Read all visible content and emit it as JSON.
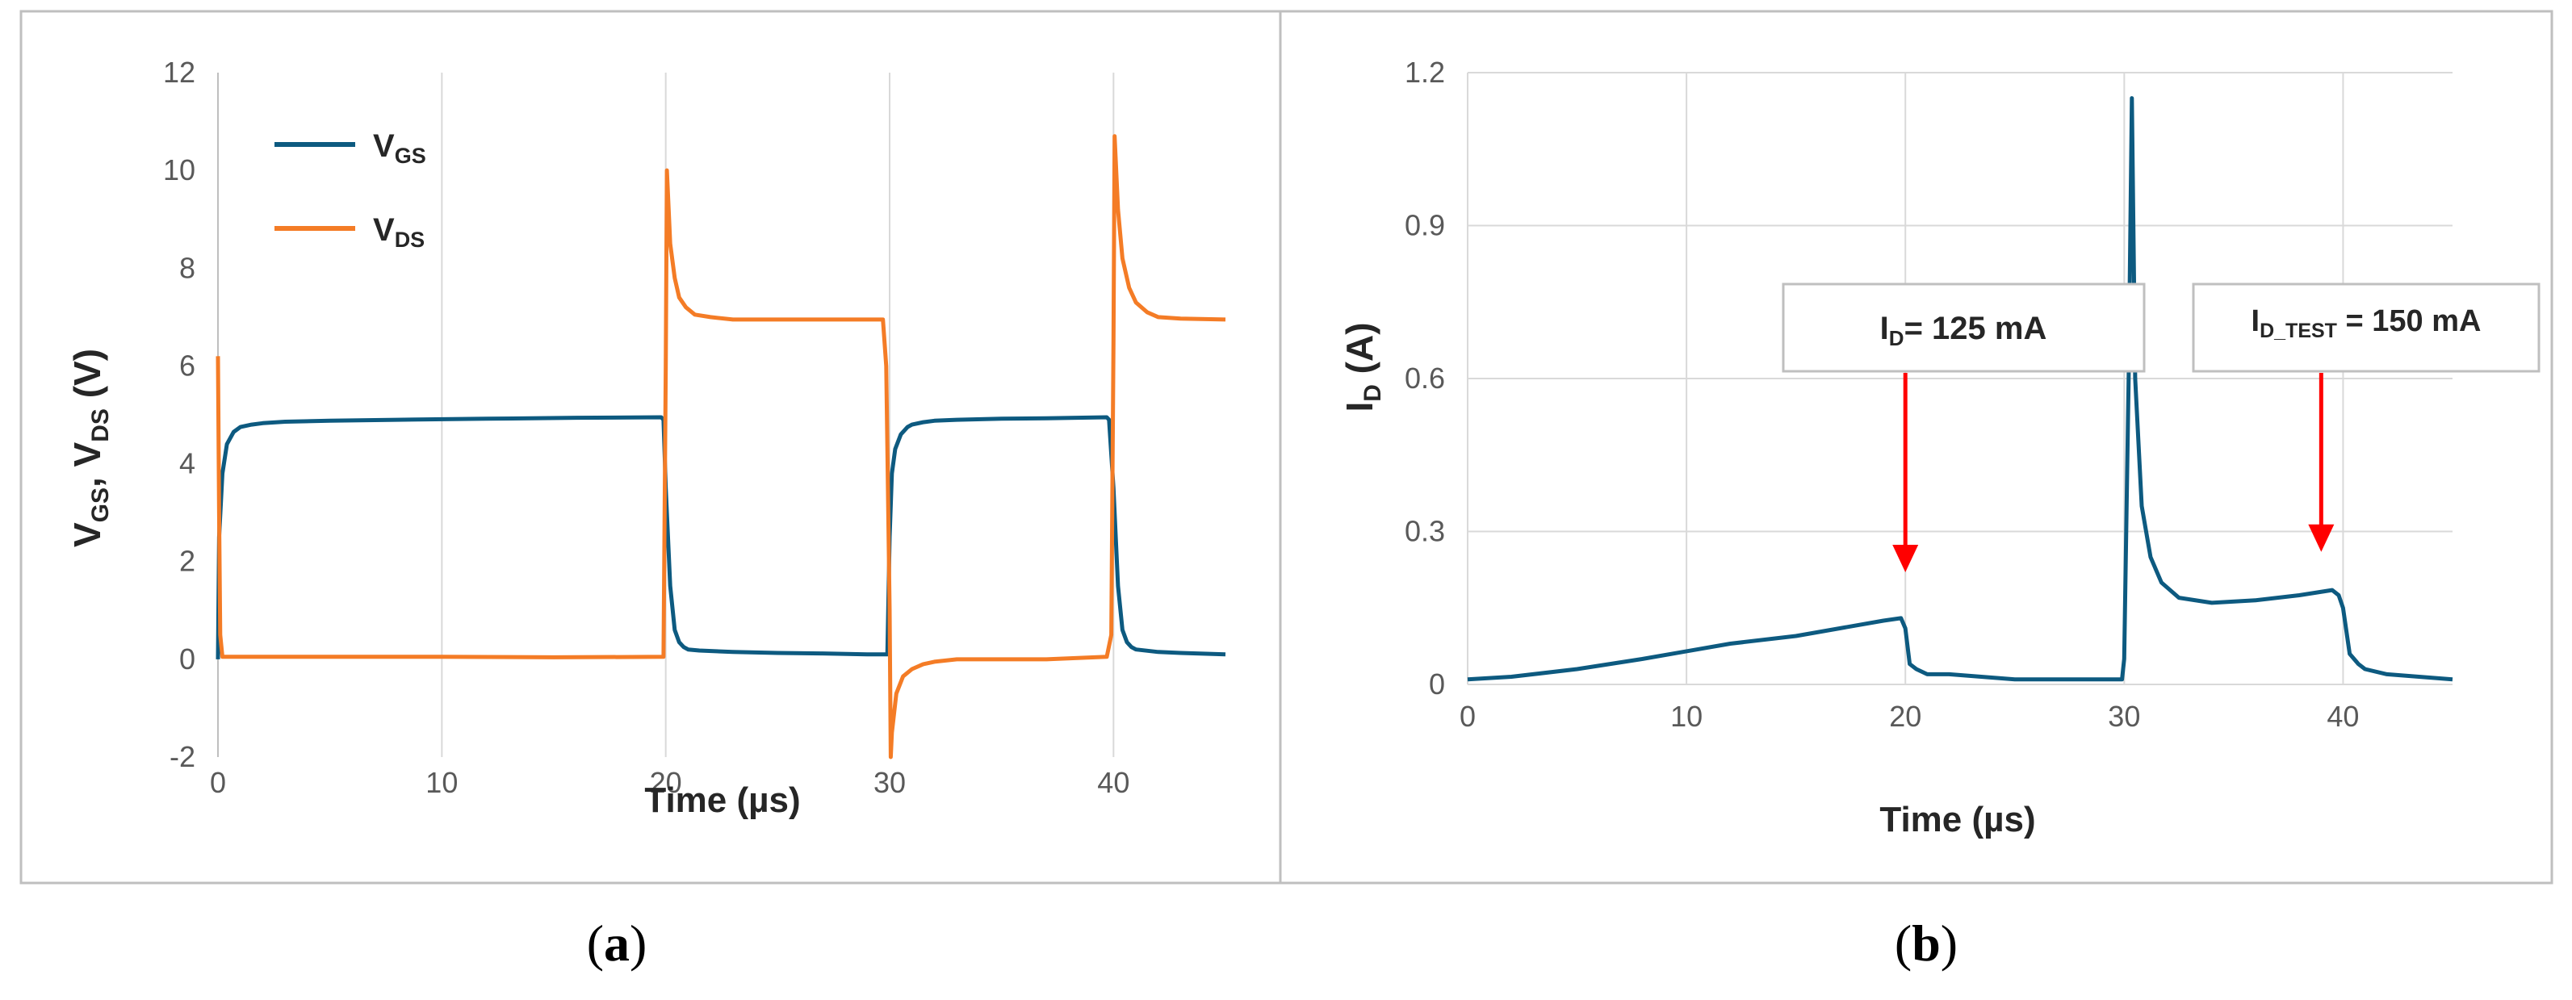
{
  "colors": {
    "vgs": "#0d5a80",
    "vds": "#f47c26",
    "id": "#0d5a80",
    "arrow": "#ff0000",
    "grid": "#d9d9d9",
    "frame": "#bfbfbf"
  },
  "chart_data": [
    {
      "panel": "(a)",
      "panel_letter": "a",
      "type": "line",
      "xlabel": "Time (µs)",
      "ylabel_parts": {
        "v1": "V",
        "s1": "GS",
        "mid": ", V",
        "s2": "DS",
        "unit": "  (V)"
      },
      "xlim": [
        0,
        45
      ],
      "ylim": [
        -2,
        12
      ],
      "xticks": [
        0,
        10,
        20,
        30,
        40
      ],
      "yticks": [
        -2,
        0,
        2,
        4,
        6,
        8,
        10,
        12
      ],
      "grid": "vertical",
      "legend_position": "top-left",
      "series": [
        {
          "name": "VGS",
          "name_main": "V",
          "name_sub": "GS",
          "color_key": "vgs",
          "x": [
            0,
            0.05,
            0.2,
            0.4,
            0.7,
            1,
            1.5,
            2,
            3,
            5,
            8,
            12,
            16,
            19.8,
            19.9,
            20.0,
            20.2,
            20.4,
            20.6,
            20.8,
            21,
            21.5,
            23,
            25,
            27,
            29,
            29.9,
            30.0,
            30.1,
            30.25,
            30.5,
            30.8,
            31,
            31.5,
            32,
            33,
            35,
            37,
            39.7,
            39.8,
            40.0,
            40.2,
            40.4,
            40.6,
            40.8,
            41,
            42,
            43,
            45
          ],
          "y": [
            0,
            2.5,
            3.8,
            4.4,
            4.65,
            4.75,
            4.8,
            4.83,
            4.86,
            4.88,
            4.9,
            4.92,
            4.94,
            4.95,
            4.9,
            3.5,
            1.5,
            0.6,
            0.35,
            0.25,
            0.2,
            0.18,
            0.15,
            0.13,
            0.12,
            0.1,
            0.1,
            2.5,
            3.8,
            4.3,
            4.6,
            4.75,
            4.8,
            4.85,
            4.88,
            4.9,
            4.92,
            4.93,
            4.95,
            4.9,
            3.5,
            1.5,
            0.6,
            0.35,
            0.25,
            0.2,
            0.15,
            0.13,
            0.1
          ]
        },
        {
          "name": "VDS",
          "name_main": "V",
          "name_sub": "DS",
          "color_key": "vds",
          "x": [
            0,
            0.05,
            0.1,
            0.2,
            0.4,
            1,
            5,
            10,
            15,
            19.9,
            20.0,
            20.05,
            20.2,
            20.4,
            20.6,
            20.9,
            21.3,
            22,
            23,
            25,
            27,
            29.7,
            29.85,
            30.0,
            30.05,
            30.1,
            30.3,
            30.6,
            31,
            31.5,
            32,
            33,
            35,
            37,
            39.7,
            39.9,
            40.0,
            40.05,
            40.2,
            40.4,
            40.7,
            41,
            41.5,
            42,
            43,
            45
          ],
          "y": [
            6.2,
            3,
            0.5,
            0.05,
            0.05,
            0.05,
            0.05,
            0.05,
            0.04,
            0.05,
            6,
            10.0,
            8.5,
            7.8,
            7.4,
            7.2,
            7.05,
            7.0,
            6.95,
            6.95,
            6.95,
            6.95,
            6.0,
            1,
            -2.0,
            -1.5,
            -0.7,
            -0.35,
            -0.2,
            -0.1,
            -0.05,
            0,
            0,
            0,
            0.05,
            0.5,
            6.5,
            10.7,
            9.2,
            8.2,
            7.6,
            7.3,
            7.1,
            7.0,
            6.97,
            6.95
          ]
        }
      ]
    },
    {
      "panel": "(b)",
      "panel_letter": "b",
      "type": "line",
      "xlabel": "Time (µs)",
      "ylabel_parts": {
        "v1": "I",
        "s1": "D",
        "unit": " (A)"
      },
      "xlim": [
        0,
        45
      ],
      "ylim": [
        0,
        1.2
      ],
      "xticks": [
        0,
        10,
        20,
        30,
        40
      ],
      "yticks": [
        0,
        0.3,
        0.6,
        0.9,
        1.2
      ],
      "ytick_labels": [
        "0",
        "0.3",
        "0.6",
        "0.9",
        "1.2"
      ],
      "grid": "both",
      "series": [
        {
          "name": "ID",
          "color_key": "id",
          "x": [
            0,
            2,
            5,
            8,
            10,
            12,
            15,
            17,
            19,
            19.8,
            20.0,
            20.2,
            20.5,
            21,
            22,
            25,
            28,
            29.9,
            30.0,
            30.2,
            30.35,
            30.5,
            30.8,
            31.2,
            31.7,
            32.5,
            34,
            36,
            38,
            39.5,
            39.8,
            40.0,
            40.3,
            40.7,
            41,
            42,
            45
          ],
          "y": [
            0.01,
            0.015,
            0.03,
            0.05,
            0.065,
            0.08,
            0.095,
            0.11,
            0.125,
            0.13,
            0.11,
            0.04,
            0.03,
            0.02,
            0.02,
            0.01,
            0.01,
            0.01,
            0.05,
            0.6,
            1.15,
            0.6,
            0.35,
            0.25,
            0.2,
            0.17,
            0.16,
            0.165,
            0.175,
            0.185,
            0.175,
            0.15,
            0.06,
            0.04,
            0.03,
            0.02,
            0.01
          ]
        }
      ],
      "annotations": [
        {
          "text_main": "I",
          "text_sub": "D",
          "text_rest": "= 125 mA",
          "arrow_x": 20,
          "arrow_y": 0.22
        },
        {
          "text_main": "I",
          "text_sub": "D_TEST",
          "text_rest": " = 150 mA",
          "arrow_x": 39,
          "arrow_y": 0.26
        }
      ]
    }
  ]
}
